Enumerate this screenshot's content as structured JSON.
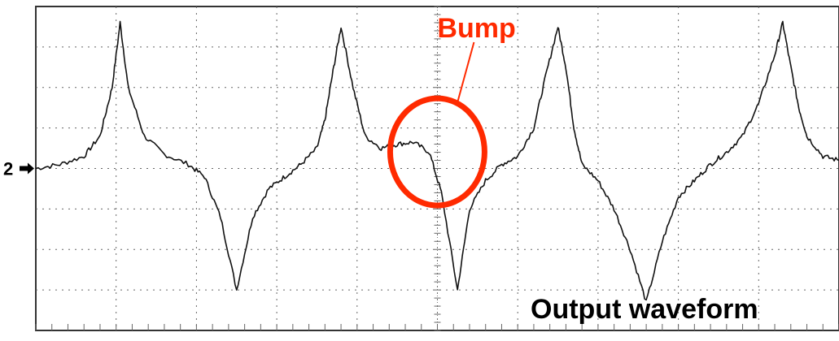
{
  "chart_data": {
    "type": "line",
    "title": "",
    "xlabel": "",
    "ylabel": "",
    "xlim": [
      0,
      10
    ],
    "ylim": [
      -4,
      4
    ],
    "grid": true,
    "grid_style": "dotted",
    "x_divisions": 10,
    "y_divisions": 8,
    "channel_marker": "2",
    "channel_marker_level": 0,
    "series": [
      {
        "x": [
          0.0,
          0.3,
          0.6,
          0.8,
          0.95,
          1.05,
          1.15,
          1.35,
          1.6,
          1.9,
          2.1,
          2.3,
          2.5,
          2.7,
          2.9,
          3.1,
          3.3,
          3.5,
          3.6,
          3.7,
          3.8,
          3.95,
          4.1,
          4.3,
          4.5,
          4.7,
          4.9,
          5.05,
          5.25,
          5.4,
          5.6,
          5.8,
          6.0,
          6.2,
          6.35,
          6.5,
          6.6,
          6.7,
          6.8,
          7.0,
          7.2,
          7.4,
          7.6,
          7.8,
          8.0,
          8.2,
          8.4,
          8.6,
          8.8,
          9.0,
          9.2,
          9.3,
          9.4,
          9.5,
          9.6,
          9.8,
          10.0
        ],
        "y": [
          0.0,
          0.1,
          0.3,
          0.8,
          2.0,
          3.6,
          2.0,
          0.8,
          0.35,
          0.1,
          -0.2,
          -1.2,
          -3.0,
          -1.2,
          -0.5,
          -0.2,
          0.1,
          0.5,
          1.2,
          2.4,
          3.5,
          2.0,
          0.8,
          0.5,
          0.6,
          0.65,
          0.4,
          -0.6,
          -3.0,
          -1.0,
          -0.3,
          0.1,
          0.3,
          1.0,
          2.3,
          3.5,
          2.5,
          1.0,
          0.1,
          -0.3,
          -1.0,
          -2.0,
          -3.3,
          -1.8,
          -0.7,
          -0.3,
          0.1,
          0.4,
          0.8,
          1.6,
          2.8,
          3.6,
          2.5,
          1.5,
          0.8,
          0.3,
          0.2
        ]
      }
    ],
    "annotations": [
      {
        "text": "Bump",
        "color": "#ff2a00",
        "target_x": 5.05,
        "target_y": 0.65
      },
      {
        "text": "Output waveform",
        "color": "#000000"
      }
    ]
  }
}
